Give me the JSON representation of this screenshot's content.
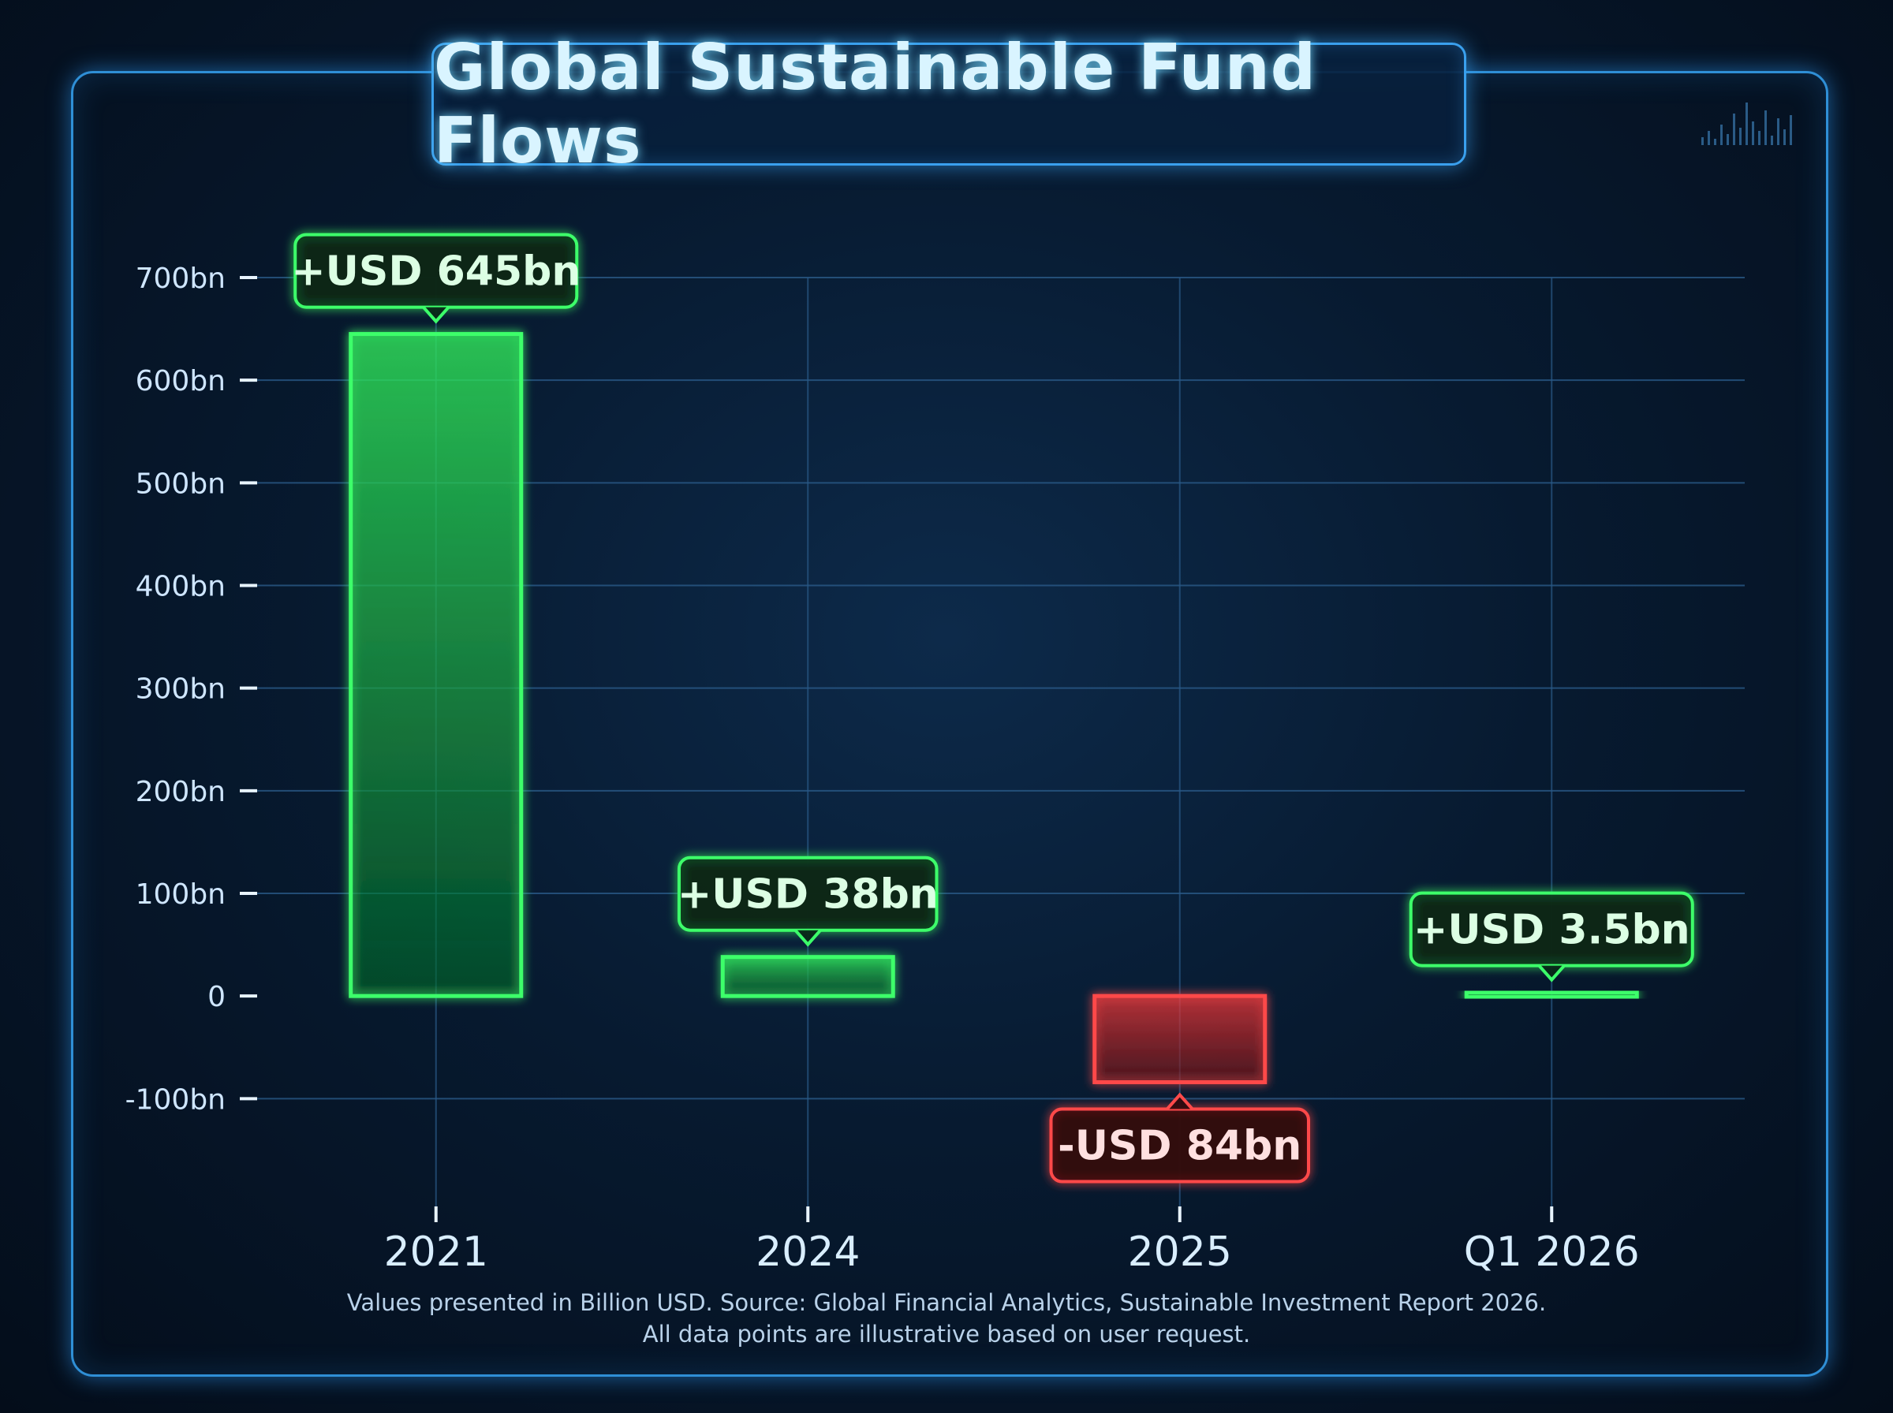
{
  "colors": {
    "positive": "#3cff6a",
    "negative": "#ff4a4a",
    "grid": "#2a5a88",
    "axis": "#e8f4ff",
    "frame": "#2f8fd6"
  },
  "chart_data": {
    "type": "bar",
    "title": "Global Sustainable Fund Flows",
    "categories": [
      "2021",
      "2024",
      "2025",
      "Q1 2026"
    ],
    "values": [
      645,
      38,
      -84,
      3.5
    ],
    "data_labels": [
      "+USD 645bn",
      "+USD 38bn",
      "-USD 84bn",
      "+USD 3.5bn"
    ],
    "y_ticks": [
      700,
      600,
      500,
      400,
      300,
      200,
      100,
      0,
      -100
    ],
    "y_tick_labels": [
      "700bn",
      "600bn",
      "500bn",
      "400bn",
      "300bn",
      "200bn",
      "100bn",
      "0",
      "-100bn"
    ],
    "ylim": [
      -205,
      700
    ],
    "xlabel": "",
    "ylabel": "",
    "grid": true,
    "legend": "none"
  },
  "footnote": {
    "line1": "Values presented in Billion USD. Source: Global Financial Analytics, Sustainable Investment Report 2026.",
    "line2": "All data points are illustrative based on user request."
  }
}
